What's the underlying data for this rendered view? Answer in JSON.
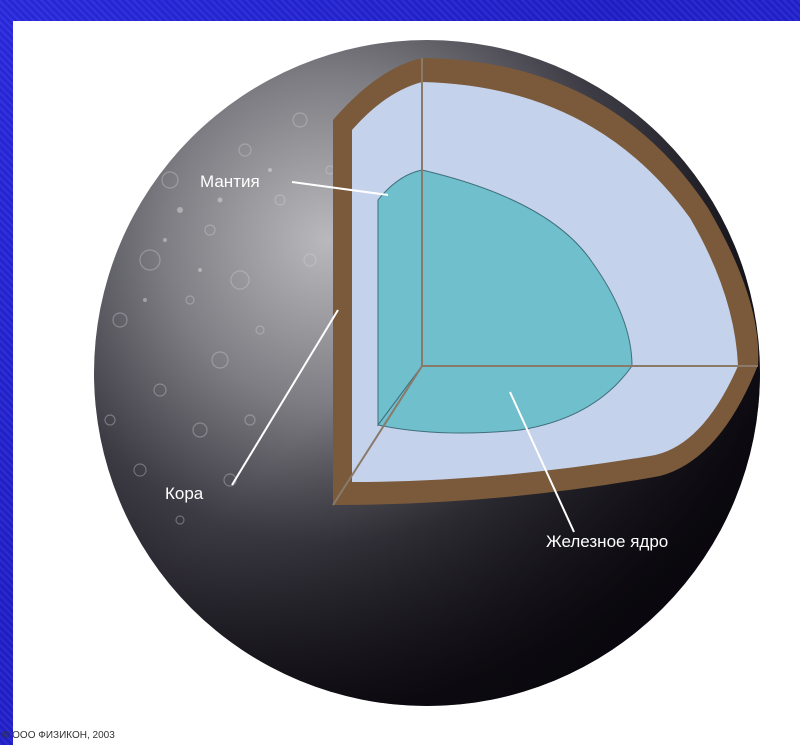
{
  "labels": {
    "mantle": "Мантия",
    "crust": "Кора",
    "core": "Железное ядро"
  },
  "copyright": "© ООО ФИЗИКОН, 2003",
  "colors": {
    "background": "#2323d6",
    "crust": "#7a5a3a",
    "mantle": "#c4d2ec",
    "core": "#6fbfcc",
    "planet_shadow": "#14111d"
  }
}
